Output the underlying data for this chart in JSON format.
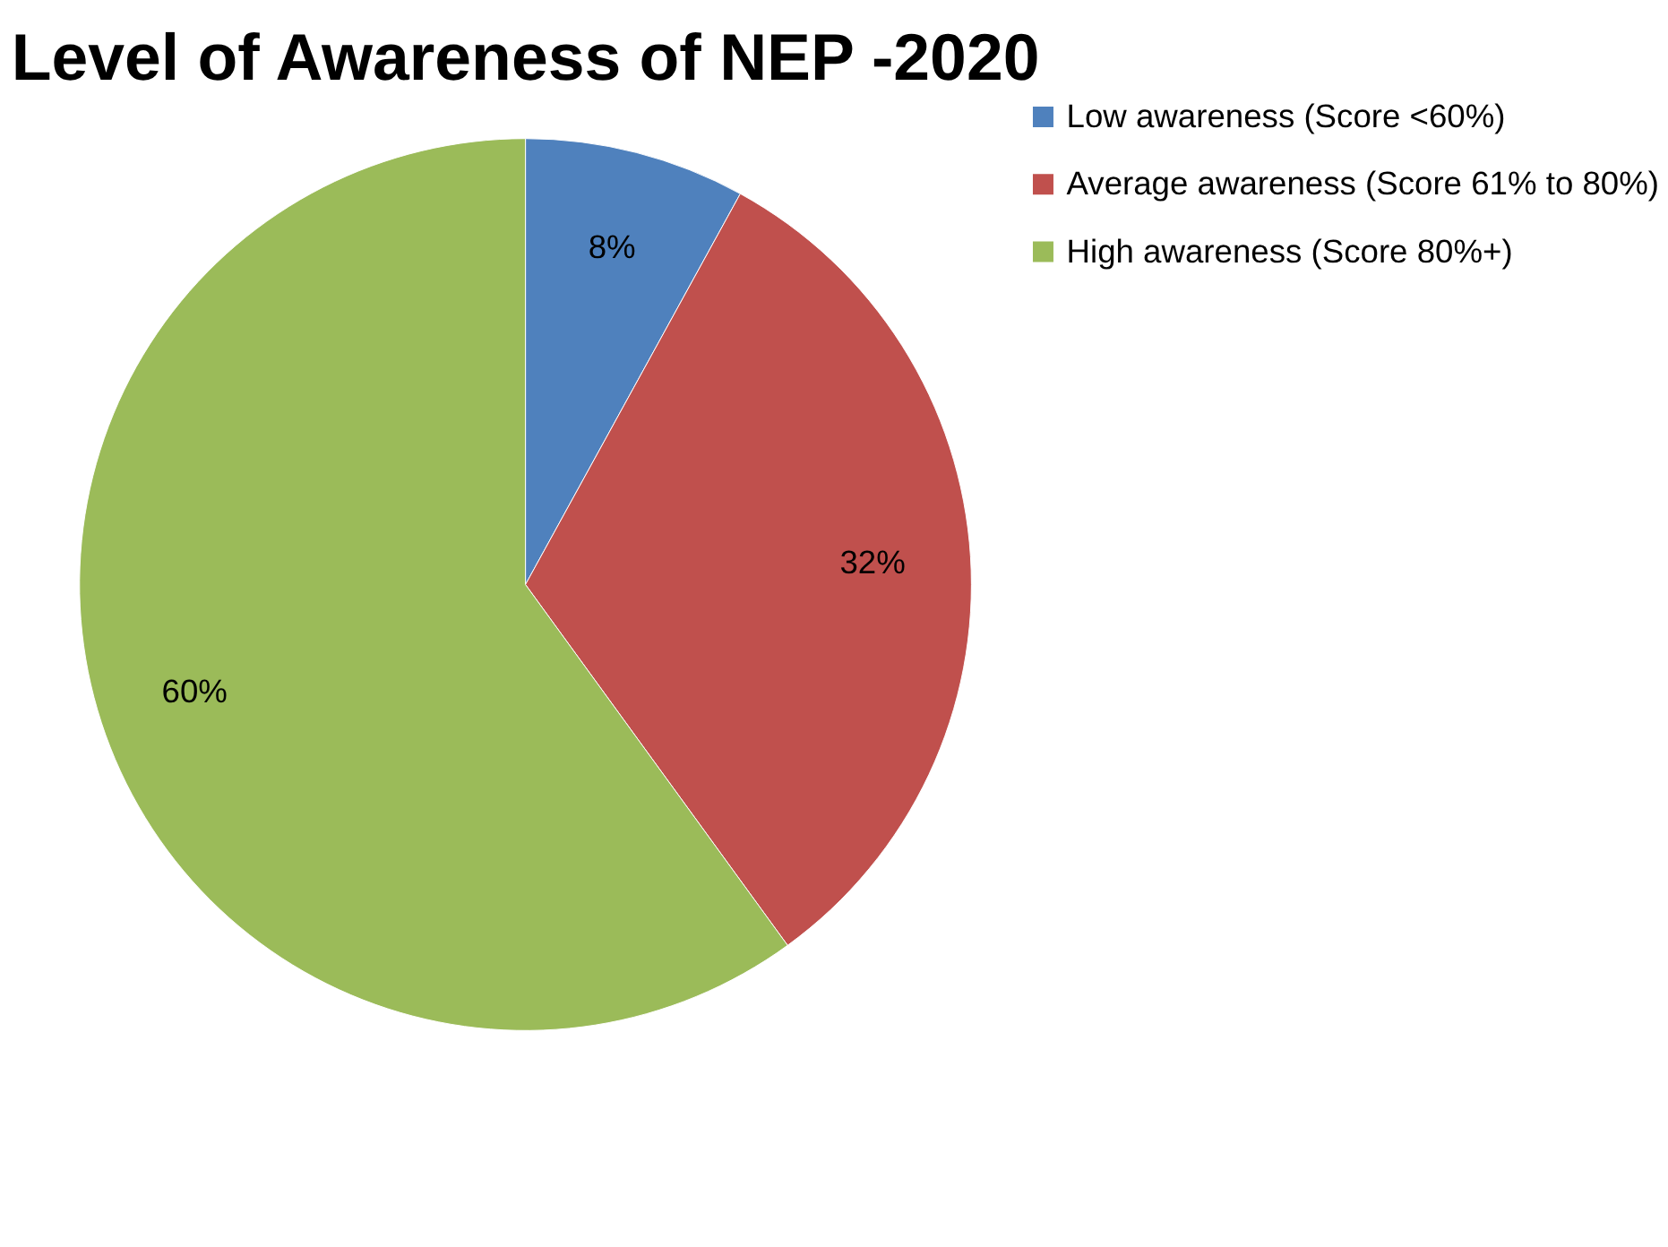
{
  "chart_data": {
    "type": "pie",
    "title": "Level of Awareness of NEP -2020",
    "categories": [
      "Low awareness (Score <60%)",
      "Average awareness (Score 61% to 80%)",
      "High awareness (Score 80%+)"
    ],
    "values": [
      8,
      32,
      60
    ],
    "colors": [
      "#4f81bd",
      "#c0504d",
      "#9bbb59"
    ],
    "value_labels": [
      "8%",
      "32%",
      "60%"
    ],
    "legend": "right"
  }
}
